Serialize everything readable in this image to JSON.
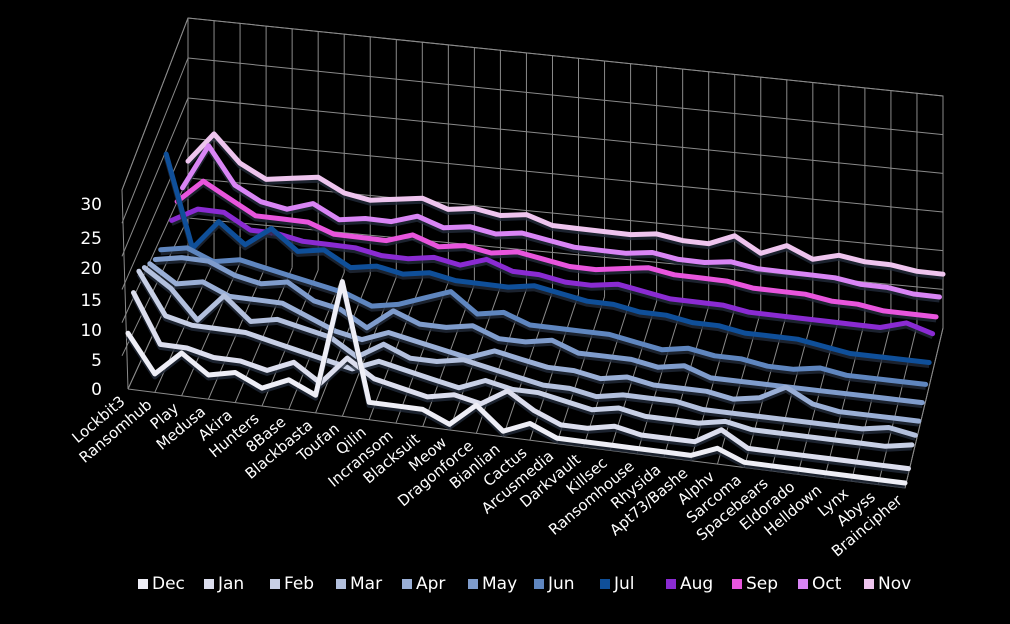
{
  "chart_data": {
    "type": "line",
    "title": "",
    "xlabel": "",
    "ylabel": "",
    "ylim": [
      0,
      30
    ],
    "yticks": [
      0,
      5,
      10,
      15,
      20,
      25,
      30
    ],
    "grid": true,
    "legend": "bottom",
    "categories": [
      "Lockbit3",
      "Ransomhub",
      "Play",
      "Medusa",
      "Akira",
      "Hunters",
      "8Base",
      "Blackbasta",
      "Toufan",
      "Qilin",
      "Incransom",
      "Blacksuit",
      "Meow",
      "Dragonforce",
      "Bianlian",
      "Cactus",
      "Arcusmedia",
      "Darkvault",
      "Killsec",
      "Ransomhouse",
      "Rhysida",
      "Apt73/Bashe",
      "Alphv",
      "Sarcoma",
      "Spacebears",
      "Eldorado",
      "Helldown",
      "Lynx",
      "Abyss",
      "Braincipher"
    ],
    "series": [
      {
        "name": "Dec",
        "color": "#eeeef6",
        "values": [
          9,
          3,
          7,
          4,
          5,
          3,
          5,
          3,
          23,
          3,
          3,
          3,
          1,
          5,
          1,
          3,
          1,
          1,
          1,
          1,
          1,
          1,
          3,
          1,
          1,
          1,
          1,
          1,
          1,
          1
        ]
      },
      {
        "name": "Jan",
        "color": "#dcdeee",
        "values": [
          14,
          6,
          6,
          5,
          5,
          4,
          6,
          3,
          8,
          5,
          4,
          3,
          4,
          3,
          6,
          3,
          1,
          1,
          2,
          1,
          1,
          1,
          4,
          1,
          1,
          1,
          1,
          1,
          1,
          1
        ]
      },
      {
        "name": "Feb",
        "color": "#c8d0e6",
        "values": [
          16,
          9,
          8,
          8,
          8,
          7,
          6,
          5,
          4,
          6,
          5,
          4,
          3,
          5,
          4,
          4,
          3,
          2,
          3,
          2,
          2,
          2,
          3,
          2,
          2,
          2,
          2,
          2,
          2,
          3
        ]
      },
      {
        "name": "Mar",
        "color": "#b3c0dd",
        "values": [
          15,
          12,
          7,
          12,
          8,
          9,
          8,
          7,
          4,
          7,
          5,
          5,
          6,
          5,
          4,
          3,
          3,
          2,
          3,
          3,
          3,
          2,
          2,
          2,
          2,
          2,
          2,
          2,
          3,
          2
        ]
      },
      {
        "name": "Apr",
        "color": "#9aafd6",
        "values": [
          14,
          11,
          12,
          10,
          10,
          10,
          8,
          6,
          5,
          7,
          6,
          5,
          4,
          6,
          5,
          4,
          4,
          3,
          4,
          3,
          3,
          3,
          2,
          3,
          6,
          3,
          2,
          2,
          2,
          2
        ]
      },
      {
        "name": "May",
        "color": "#7f9ccc",
        "values": [
          13,
          14,
          14,
          12,
          11,
          12,
          9,
          8,
          5,
          9,
          7,
          7,
          8,
          6,
          6,
          7,
          5,
          5,
          5,
          4,
          5,
          3,
          3,
          3,
          3,
          3,
          3,
          3,
          3,
          3
        ]
      },
      {
        "name": "Jun",
        "color": "#5f86bf",
        "values": [
          13,
          14,
          12,
          13,
          12,
          11,
          10,
          9,
          7,
          8,
          10,
          12,
          8,
          9,
          7,
          7,
          7,
          7,
          6,
          5,
          6,
          5,
          5,
          4,
          4,
          5,
          4,
          4,
          4,
          4
        ]
      },
      {
        "name": "Jul",
        "color": "#0f4f99",
        "values": [
          30,
          12,
          18,
          14,
          18,
          14,
          15,
          12,
          13,
          12,
          13,
          12,
          12,
          12,
          13,
          12,
          11,
          11,
          10,
          10,
          9,
          9,
          8,
          8,
          8,
          7,
          6,
          6,
          6,
          6
        ]
      },
      {
        "name": "Aug",
        "color": "#8a2bd2",
        "values": [
          15,
          18,
          18,
          15,
          15,
          14,
          14,
          14,
          13,
          13,
          14,
          13,
          15,
          13,
          13,
          12,
          12,
          13,
          12,
          11,
          11,
          11,
          10,
          10,
          10,
          10,
          10,
          10,
          12,
          10
        ]
      },
      {
        "name": "Sep",
        "color": "#e855dd",
        "values": [
          17,
          22,
          19,
          16,
          16,
          16,
          14,
          14,
          14,
          16,
          14,
          15,
          14,
          15,
          14,
          13,
          13,
          14,
          15,
          14,
          14,
          14,
          13,
          13,
          13,
          12,
          12,
          11,
          11,
          11
        ]
      },
      {
        "name": "Oct",
        "color": "#d985f5",
        "values": [
          18,
          28,
          20,
          17,
          16,
          18,
          15,
          16,
          16,
          18,
          16,
          17,
          16,
          17,
          16,
          15,
          15,
          15,
          16,
          15,
          15,
          16,
          15,
          15,
          15,
          15,
          14,
          14,
          13,
          13
        ]
      },
      {
        "name": "Nov",
        "color": "#eec4ee",
        "values": [
          22,
          29,
          23,
          20,
          21,
          22,
          19,
          18,
          19,
          20,
          18,
          19,
          18,
          19,
          17,
          17,
          17,
          17,
          18,
          17,
          17,
          20,
          16,
          19,
          16,
          18,
          17,
          17,
          16,
          16
        ]
      }
    ]
  }
}
